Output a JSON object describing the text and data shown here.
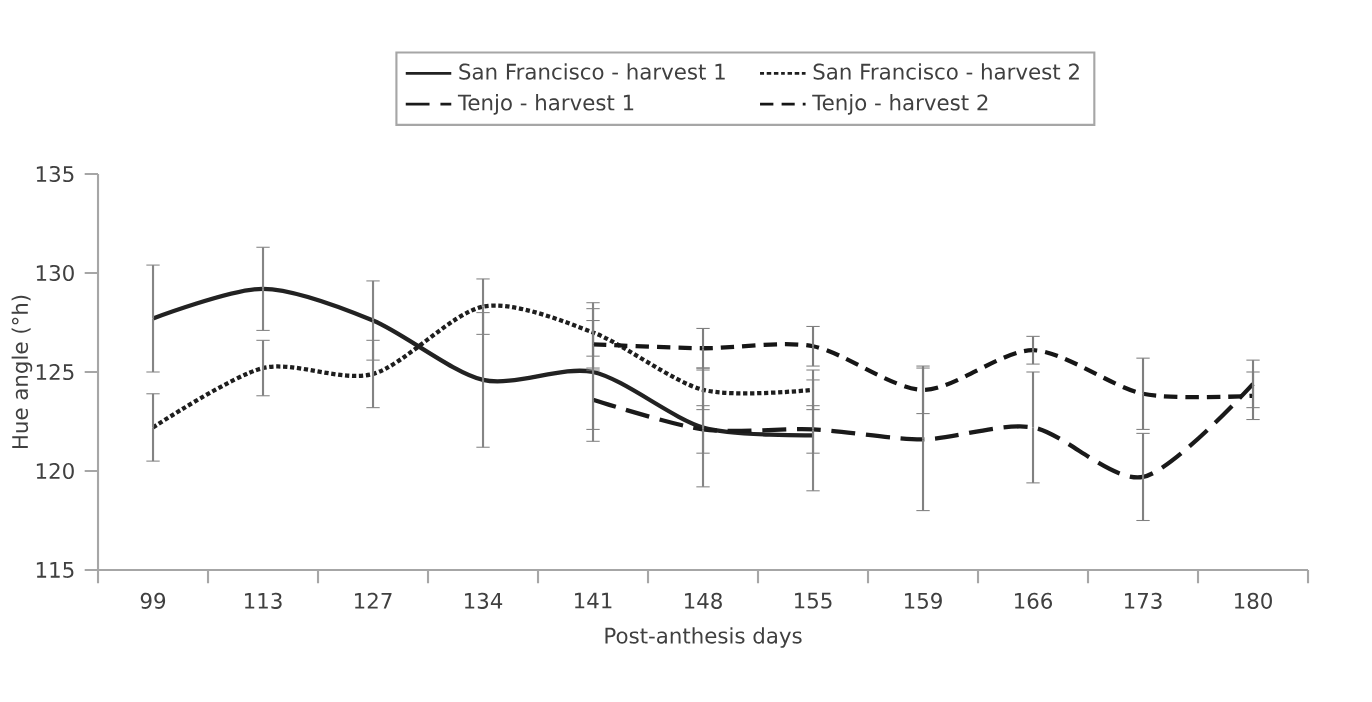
{
  "chart_data": {
    "type": "line",
    "xlabel": "Post-anthesis days",
    "ylabel": "Hue angle (°h)",
    "categories": [
      "99",
      "113",
      "127",
      "134",
      "141",
      "148",
      "155",
      "159",
      "166",
      "173",
      "180"
    ],
    "series": [
      {
        "name": "San Francisco - harvest 1",
        "color": "#222222",
        "line_style": "solid",
        "values": [
          127.7,
          129.2,
          127.6,
          124.6,
          125.0,
          122.2,
          121.8,
          null,
          null,
          null,
          null
        ],
        "errors": [
          2.7,
          2.1,
          2.0,
          3.4,
          3.5,
          3.0,
          2.8,
          null,
          null,
          null,
          null
        ]
      },
      {
        "name": "San Francisco - harvest 2",
        "color": "#1e1e1e",
        "line_style": "dotted",
        "values": [
          122.2,
          125.2,
          124.9,
          128.3,
          127.0,
          124.1,
          124.1,
          null,
          null,
          null,
          null
        ],
        "errors": [
          1.7,
          1.4,
          1.7,
          1.4,
          1.2,
          1.0,
          1.0,
          null,
          null,
          null,
          null
        ]
      },
      {
        "name": "Tenjo - harvest 1",
        "color": "#1a1a1a",
        "line_style": "long dashed",
        "values": [
          null,
          null,
          null,
          null,
          123.6,
          122.1,
          122.1,
          121.6,
          122.2,
          119.7,
          124.4
        ],
        "errors": [
          null,
          null,
          null,
          null,
          1.5,
          1.2,
          1.2,
          3.6,
          2.8,
          2.2,
          1.2
        ]
      },
      {
        "name": "Tenjo - harvest 2",
        "color": "#161616",
        "line_style": "dashed",
        "values": [
          null,
          null,
          null,
          null,
          126.4,
          126.2,
          126.3,
          124.1,
          126.1,
          123.9,
          123.8
        ],
        "errors": [
          null,
          null,
          null,
          null,
          1.2,
          1.0,
          1.0,
          1.2,
          0.7,
          1.8,
          1.2
        ]
      }
    ],
    "ylim": [
      115,
      135
    ],
    "yticks": [
      115,
      120,
      125,
      130,
      135
    ],
    "grid": false,
    "legend": "top",
    "marker": "none"
  }
}
